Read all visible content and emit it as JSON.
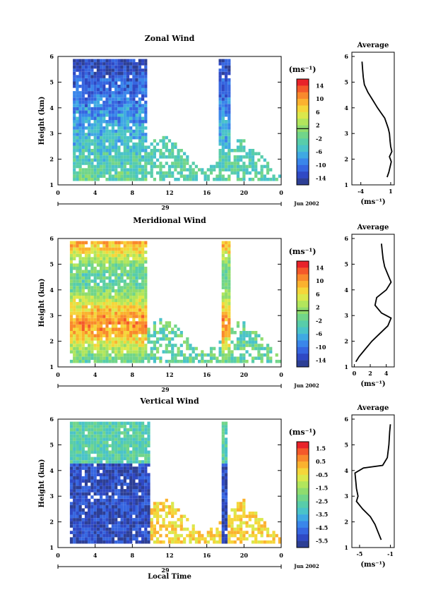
{
  "chart_data": [
    {
      "type": "heatmap",
      "title": "Zonal Wind",
      "ylabel": "Height (km)",
      "ylim": [
        1,
        6
      ],
      "yticks": [
        "1",
        "2",
        "3",
        "4",
        "5",
        "6"
      ],
      "xlim": [
        0,
        24
      ],
      "xticks": [
        "0",
        "4",
        "8",
        "12",
        "16",
        "20",
        "0"
      ],
      "date_label": "29",
      "month_label": "Jun 2002",
      "colorbar": {
        "unit": "(ms⁻¹)",
        "labels": [
          "14",
          "10",
          "6",
          "2",
          "-2",
          "-6",
          "-10",
          "-14"
        ],
        "range": [
          -16,
          16
        ],
        "zero_line": 2
      },
      "average": {
        "title": "Average",
        "xlabel": "(ms⁻¹)",
        "xticks": [
          "-4",
          "1"
        ],
        "xlim": [
          -5.5,
          1.6
        ],
        "profile": [
          [
            0.4,
            1.3
          ],
          [
            0.7,
            1.5
          ],
          [
            0.9,
            1.7
          ],
          [
            1.1,
            1.9
          ],
          [
            0.8,
            2.1
          ],
          [
            1.2,
            2.3
          ],
          [
            1.0,
            2.5
          ],
          [
            0.9,
            2.7
          ],
          [
            0.8,
            3.0
          ],
          [
            0.6,
            3.2
          ],
          [
            0.3,
            3.4
          ],
          [
            0.0,
            3.6
          ],
          [
            -0.6,
            3.8
          ],
          [
            -1.2,
            4.0
          ],
          [
            -2.0,
            4.3
          ],
          [
            -2.8,
            4.6
          ],
          [
            -3.4,
            4.9
          ],
          [
            -3.6,
            5.2
          ],
          [
            -3.7,
            5.5
          ],
          [
            -3.8,
            5.8
          ]
        ]
      },
      "activity": [
        [
          1.4,
          5.8
        ],
        [
          5.8,
          9.6
        ],
        [
          17.0,
          18.3
        ]
      ],
      "low_band": [
        9.6,
        24
      ],
      "palette_bias": 0.45
    },
    {
      "type": "heatmap",
      "title": "Meridional Wind",
      "ylabel": "Height (km)",
      "ylim": [
        1,
        6
      ],
      "yticks": [
        "1",
        "2",
        "3",
        "4",
        "5",
        "6"
      ],
      "xlim": [
        0,
        24
      ],
      "xticks": [
        "0",
        "4",
        "8",
        "12",
        "16",
        "20",
        "0"
      ],
      "date_label": "29",
      "month_label": "Jun 2002",
      "colorbar": {
        "unit": "(ms⁻¹)",
        "labels": [
          "14",
          "10",
          "6",
          "2",
          "-2",
          "-6",
          "-10",
          "-14"
        ],
        "range": [
          -16,
          16
        ],
        "zero_line": 2
      },
      "average": {
        "title": "Average",
        "xlabel": "(ms⁻¹)",
        "xticks": [
          "0",
          "2",
          "4"
        ],
        "xlim": [
          -0.3,
          5.0
        ],
        "profile": [
          [
            0.2,
            1.2
          ],
          [
            0.6,
            1.4
          ],
          [
            1.4,
            1.7
          ],
          [
            2.2,
            2.0
          ],
          [
            3.2,
            2.3
          ],
          [
            4.2,
            2.6
          ],
          [
            4.6,
            2.9
          ],
          [
            3.4,
            3.1
          ],
          [
            2.6,
            3.4
          ],
          [
            2.8,
            3.7
          ],
          [
            4.0,
            4.0
          ],
          [
            4.6,
            4.3
          ],
          [
            4.2,
            4.6
          ],
          [
            3.8,
            4.9
          ],
          [
            3.6,
            5.2
          ],
          [
            3.5,
            5.5
          ],
          [
            3.4,
            5.8
          ]
        ]
      },
      "activity": [
        [
          1.0,
          6.0
        ],
        [
          5.0,
          9.6
        ],
        [
          17.5,
          18.4
        ]
      ],
      "low_band": [
        9.4,
        24
      ],
      "palette_bias": 0.62
    },
    {
      "type": "heatmap",
      "title": "Vertical Wind",
      "ylabel": "Height (km)",
      "ylim": [
        1,
        6
      ],
      "yticks": [
        "1",
        "2",
        "3",
        "4",
        "5",
        "6"
      ],
      "xlim": [
        0,
        24
      ],
      "xticks": [
        "0",
        "4",
        "8",
        "12",
        "16",
        "20",
        "0"
      ],
      "date_label": "29",
      "month_label": "Jun 2002",
      "xlabel": "Local Time",
      "colorbar": {
        "unit": "(ms⁻¹)",
        "labels": [
          "1.5",
          "0.5",
          "-0.5",
          "-1.5",
          "-2.5",
          "-3.5",
          "-4.5",
          "-5.5"
        ],
        "range": [
          -6.0,
          2.0
        ],
        "zero_line": null
      },
      "average": {
        "title": "Average",
        "xlabel": "(ms⁻¹)",
        "xticks": [
          "-5",
          "-1"
        ],
        "xlim": [
          -6.0,
          -0.5
        ],
        "profile": [
          [
            -2.2,
            1.3
          ],
          [
            -2.6,
            1.6
          ],
          [
            -3.0,
            1.9
          ],
          [
            -3.6,
            2.2
          ],
          [
            -4.6,
            2.5
          ],
          [
            -5.4,
            2.8
          ],
          [
            -5.2,
            3.0
          ],
          [
            -5.4,
            3.3
          ],
          [
            -5.5,
            3.6
          ],
          [
            -5.6,
            3.9
          ],
          [
            -4.5,
            4.1
          ],
          [
            -2.0,
            4.2
          ],
          [
            -1.4,
            4.5
          ],
          [
            -1.2,
            5.0
          ],
          [
            -1.1,
            5.5
          ],
          [
            -1.0,
            5.8
          ]
        ]
      },
      "activity": [
        [
          1.0,
          5.8
        ],
        [
          5.8,
          9.8
        ],
        [
          17.6,
          18.2
        ]
      ],
      "low_band": [
        9.8,
        24
      ],
      "palette_bias": 0.25
    }
  ]
}
